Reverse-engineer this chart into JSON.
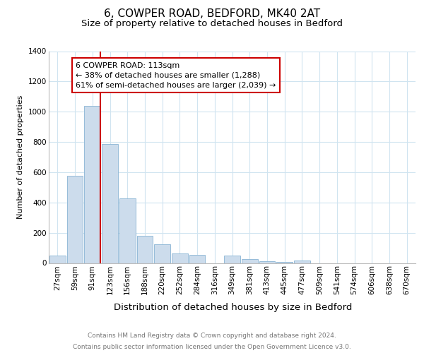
{
  "title": "6, COWPER ROAD, BEDFORD, MK40 2AT",
  "subtitle": "Size of property relative to detached houses in Bedford",
  "xlabel": "Distribution of detached houses by size in Bedford",
  "ylabel": "Number of detached properties",
  "bar_labels": [
    "27sqm",
    "59sqm",
    "91sqm",
    "123sqm",
    "156sqm",
    "188sqm",
    "220sqm",
    "252sqm",
    "284sqm",
    "316sqm",
    "349sqm",
    "381sqm",
    "413sqm",
    "445sqm",
    "477sqm",
    "509sqm",
    "541sqm",
    "574sqm",
    "606sqm",
    "638sqm",
    "670sqm"
  ],
  "bar_values": [
    50,
    575,
    1040,
    785,
    425,
    178,
    125,
    65,
    55,
    0,
    48,
    25,
    10,
    5,
    15,
    0,
    0,
    0,
    0,
    0,
    0
  ],
  "bar_color": "#ccdcec",
  "bar_edge_color": "#8ab4d4",
  "property_line_color": "#cc0000",
  "annotation_text": "6 COWPER ROAD: 113sqm\n← 38% of detached houses are smaller (1,288)\n61% of semi-detached houses are larger (2,039) →",
  "annotation_box_color": "#ffffff",
  "annotation_box_edge_color": "#cc0000",
  "ylim": [
    0,
    1400
  ],
  "yticks": [
    0,
    200,
    400,
    600,
    800,
    1000,
    1200,
    1400
  ],
  "footer_line1": "Contains HM Land Registry data © Crown copyright and database right 2024.",
  "footer_line2": "Contains public sector information licensed under the Open Government Licence v3.0.",
  "bg_color": "#ffffff",
  "grid_color": "#d0e4f0",
  "title_fontsize": 11,
  "subtitle_fontsize": 9.5,
  "xlabel_fontsize": 9.5,
  "ylabel_fontsize": 8,
  "tick_fontsize": 7.5,
  "annotation_fontsize": 8,
  "footer_fontsize": 6.5
}
